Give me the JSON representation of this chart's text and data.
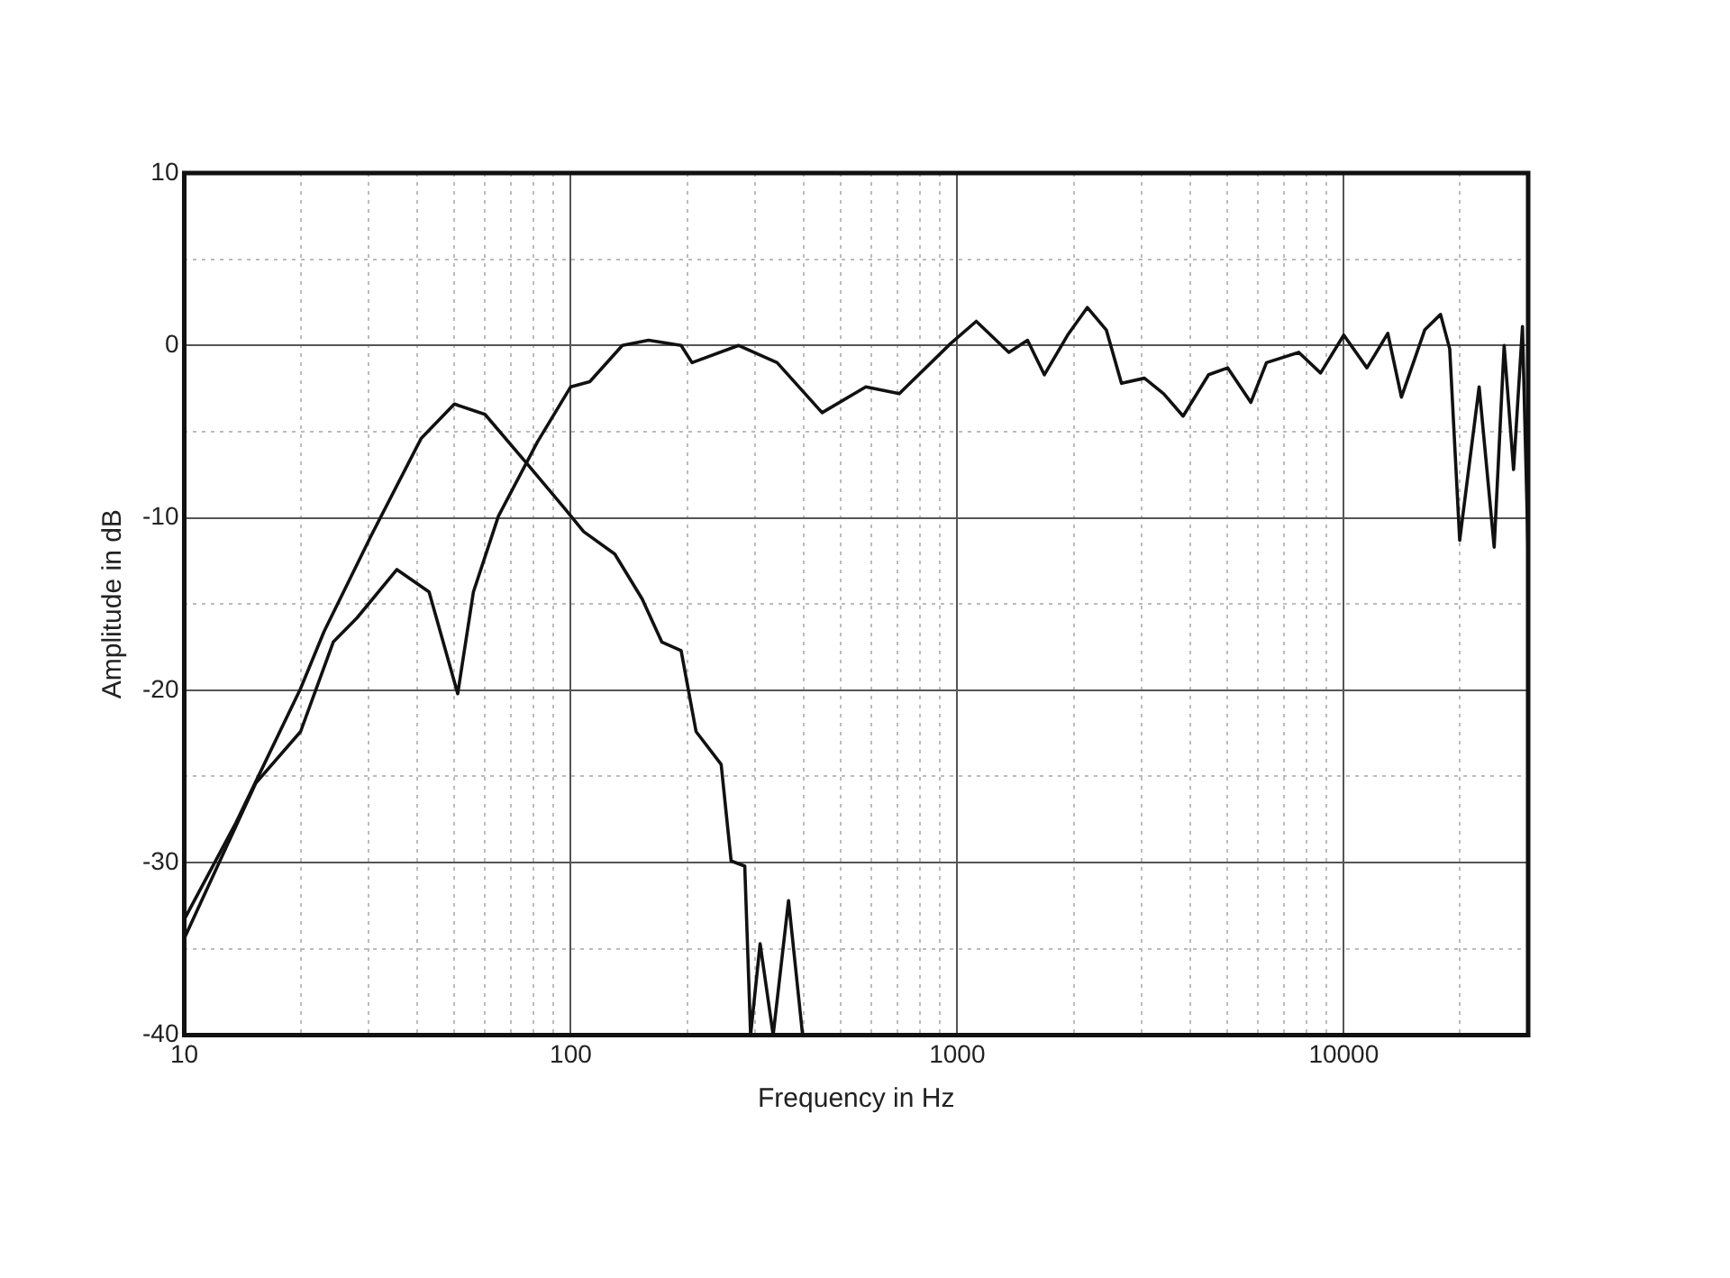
{
  "chart_data": {
    "type": "line",
    "xlabel": "Frequency in Hz",
    "ylabel": "Amplitude in dB",
    "log": "x",
    "grid": true,
    "legend": false,
    "marker": "none",
    "line_style": "solid",
    "xlim": [
      10,
      30000
    ],
    "ylim": [
      -40,
      10
    ],
    "xticks": [
      10,
      {
        "value": 20,
        "label": null
      },
      {
        "value": 30,
        "label": null
      },
      {
        "value": 40,
        "label": null
      },
      {
        "value": 50,
        "label": null
      },
      {
        "value": 60,
        "label": null
      },
      {
        "value": 70,
        "label": null
      },
      {
        "value": 80,
        "label": null
      },
      {
        "value": 90,
        "label": null
      },
      100,
      {
        "value": 200,
        "label": null
      },
      {
        "value": 300,
        "label": null
      },
      {
        "value": 400,
        "label": null
      },
      {
        "value": 500,
        "label": null
      },
      {
        "value": 600,
        "label": null
      },
      {
        "value": 700,
        "label": null
      },
      {
        "value": 800,
        "label": null
      },
      {
        "value": 900,
        "label": null
      },
      1000,
      {
        "value": 2000,
        "label": null
      },
      {
        "value": 3000,
        "label": null
      },
      {
        "value": 4000,
        "label": null
      },
      {
        "value": 5000,
        "label": null
      },
      {
        "value": 6000,
        "label": null
      },
      {
        "value": 7000,
        "label": null
      },
      {
        "value": 8000,
        "label": null
      },
      {
        "value": 9000,
        "label": null
      },
      10000,
      {
        "value": 20000,
        "label": null
      }
    ],
    "yticks": [
      -40,
      {
        "value": -35,
        "label": null
      },
      -30,
      {
        "value": -25,
        "label": null
      },
      -20,
      {
        "value": -15,
        "label": null
      },
      -10,
      {
        "value": -5,
        "label": null
      },
      0,
      {
        "value": 5,
        "label": null
      },
      10
    ],
    "series": [
      {
        "color": "#111111",
        "x": [
          10,
          13.6,
          20,
          23,
          30.5,
          41,
          50,
          60,
          76,
          96,
          108,
          130,
          153,
          172,
          193,
          211,
          245,
          260,
          282,
          292,
          309,
          334,
          366,
          398
        ],
        "values": [
          -33.3,
          -27.7,
          -19.9,
          -16.6,
          -11,
          -5.4,
          -3.4,
          -4,
          -6.7,
          -9.4,
          -10.8,
          -12.1,
          -14.7,
          -17.2,
          -17.7,
          -22.4,
          -24.3,
          -29.9,
          -30.2,
          -40,
          -34.7,
          -40,
          -32.2,
          -40
        ]
      },
      {
        "color": "#111111",
        "x": [
          10,
          15.3,
          20,
          24.3,
          28,
          35.5,
          43,
          51,
          56,
          65,
          82,
          100,
          112,
          136,
          159,
          193,
          206,
          272,
          342,
          447,
          580,
          708,
          960,
          1120,
          1360,
          1520,
          1680,
          1930,
          2170,
          2430,
          2660,
          3050,
          3420,
          3840,
          4470,
          5010,
          5750,
          6310,
          7650,
          8710,
          10000,
          11480,
          13000,
          14100,
          16200,
          17800,
          18800,
          19950,
          22400,
          24500,
          26000,
          27500,
          29000,
          30000
        ],
        "values": [
          -34.4,
          -25.4,
          -22.4,
          -17.2,
          -15.8,
          -13,
          -14.3,
          -20.2,
          -14.3,
          -9.9,
          -5.6,
          -2.4,
          -2.1,
          0,
          0.3,
          0,
          -1,
          0,
          -1,
          -3.9,
          -2.4,
          -2.8,
          0.1,
          1.4,
          -0.4,
          0.3,
          -1.7,
          0.6,
          2.2,
          0.9,
          -2.2,
          -1.9,
          -2.8,
          -4.1,
          -1.7,
          -1.3,
          -3.3,
          -1,
          -0.4,
          -1.6,
          0.6,
          -1.3,
          0.7,
          -3,
          0.9,
          1.8,
          -0.2,
          -11.3,
          -2.4,
          -11.7,
          0,
          -7.2,
          1.1,
          -12.1
        ]
      }
    ]
  }
}
